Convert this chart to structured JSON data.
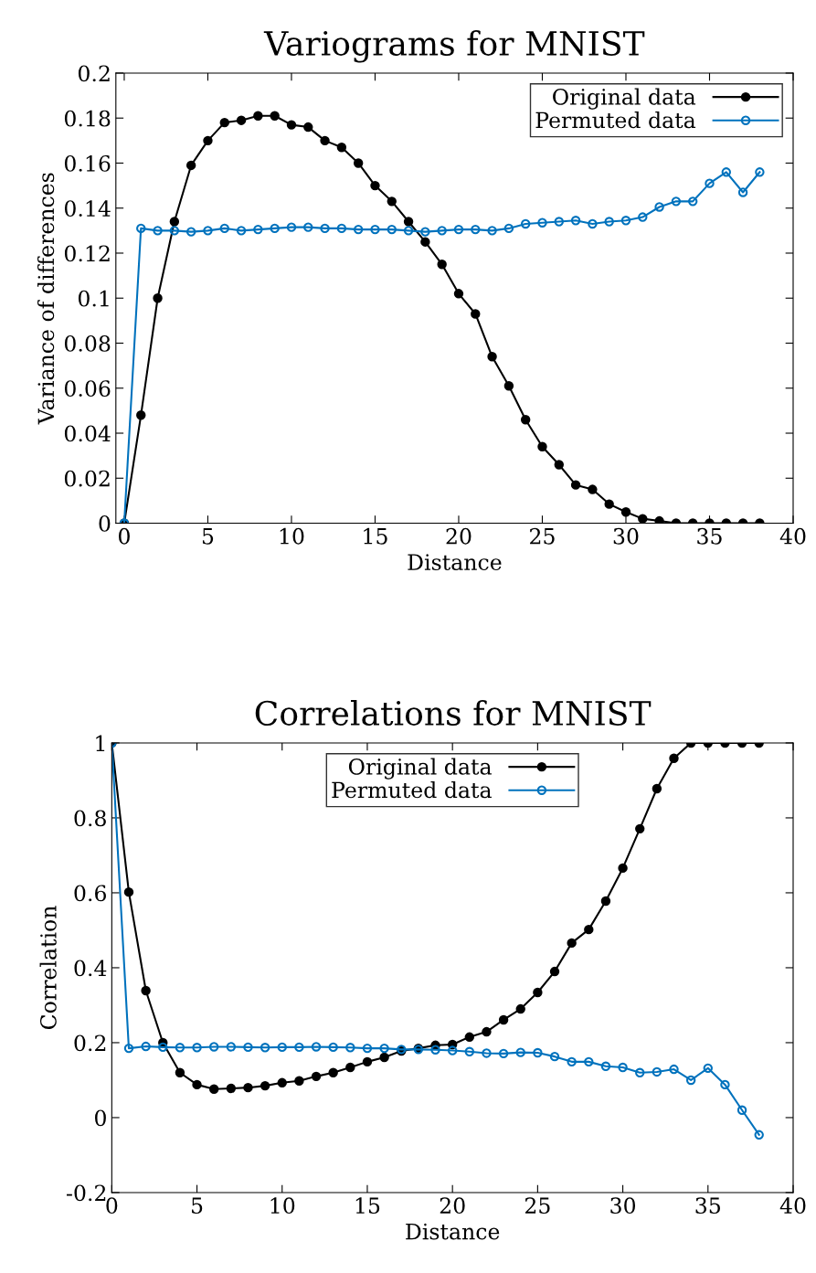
{
  "chart_data": [
    {
      "type": "line",
      "title": "Variograms for MNIST",
      "xlabel": "Distance",
      "ylabel": "Variance of differences",
      "line_style": "solid",
      "legend": "top right",
      "grid": false,
      "x": [
        0,
        1,
        2,
        3,
        4,
        5,
        6,
        7,
        8,
        9,
        10,
        11,
        12,
        13,
        14,
        15,
        16,
        17,
        18,
        19,
        20,
        21,
        22,
        23,
        24,
        25,
        26,
        27,
        28,
        29,
        30,
        31,
        32,
        33,
        34,
        35,
        36,
        37,
        38
      ],
      "xlim": [
        -0.5,
        40
      ],
      "xticks": [
        0,
        5,
        10,
        15,
        20,
        25,
        30,
        35,
        40
      ],
      "ylim": [
        0,
        0.2
      ],
      "yticks": [
        0,
        0.02,
        0.04,
        0.06,
        0.08,
        0.1,
        0.12,
        0.14,
        0.16,
        0.18,
        0.2
      ],
      "series": [
        {
          "name": "Original data",
          "color": "#000000",
          "marker": "circle",
          "values": [
            0,
            0.048,
            0.1,
            0.134,
            0.159,
            0.17,
            0.178,
            0.179,
            0.181,
            0.181,
            0.177,
            0.176,
            0.17,
            0.167,
            0.16,
            0.15,
            0.143,
            0.134,
            0.125,
            0.115,
            0.102,
            0.093,
            0.074,
            0.061,
            0.046,
            0.034,
            0.026,
            0.017,
            0.015,
            0.0085,
            0.005,
            0.002,
            0.001,
            0,
            0,
            0,
            0,
            0,
            0
          ]
        },
        {
          "name": "Permuted data",
          "color": "#0072bd",
          "marker": "open circle",
          "values": [
            0,
            0.131,
            0.13,
            0.13,
            0.1295,
            0.13,
            0.131,
            0.13,
            0.1305,
            0.131,
            0.1315,
            0.1315,
            0.131,
            0.131,
            0.1305,
            0.1305,
            0.1305,
            0.13,
            0.1295,
            0.13,
            0.1305,
            0.1305,
            0.13,
            0.131,
            0.133,
            0.1335,
            0.134,
            0.1345,
            0.133,
            0.134,
            0.1345,
            0.136,
            0.1405,
            0.143,
            0.143,
            0.151,
            0.156,
            0.147,
            0.156
          ]
        }
      ]
    },
    {
      "type": "line",
      "title": "Correlations for MNIST",
      "xlabel": "Distance",
      "ylabel": "Correlation",
      "line_style": "solid",
      "legend": "top",
      "grid": false,
      "x": [
        0,
        1,
        2,
        3,
        4,
        5,
        6,
        7,
        8,
        9,
        10,
        11,
        12,
        13,
        14,
        15,
        16,
        17,
        18,
        19,
        20,
        21,
        22,
        23,
        24,
        25,
        26,
        27,
        28,
        29,
        30,
        31,
        32,
        33,
        34,
        35,
        36,
        37,
        38
      ],
      "xlim": [
        0,
        40
      ],
      "xticks": [
        0,
        5,
        10,
        15,
        20,
        25,
        30,
        35,
        40
      ],
      "ylim": [
        -0.2,
        1
      ],
      "yticks": [
        {
          "value": -0.2,
          "label": "-0.2"
        },
        0,
        0.2,
        0.4,
        0.6,
        0.8,
        1
      ],
      "series": [
        {
          "name": "Original data",
          "color": "#000000",
          "marker": "circle",
          "values": [
            1,
            0.602,
            0.339,
            0.2,
            0.12,
            0.088,
            0.076,
            0.078,
            0.08,
            0.085,
            0.093,
            0.098,
            0.11,
            0.12,
            0.134,
            0.149,
            0.161,
            0.178,
            0.185,
            0.193,
            0.195,
            0.215,
            0.229,
            0.261,
            0.29,
            0.334,
            0.39,
            0.466,
            0.502,
            0.578,
            0.666,
            0.771,
            0.878,
            0.959,
            1,
            1,
            1,
            1,
            1
          ]
        },
        {
          "name": "Permuted data",
          "color": "#0072bd",
          "marker": "open circle",
          "values": [
            1,
            0.185,
            0.19,
            0.188,
            0.187,
            0.187,
            0.189,
            0.189,
            0.188,
            0.187,
            0.188,
            0.188,
            0.189,
            0.188,
            0.187,
            0.185,
            0.185,
            0.182,
            0.182,
            0.181,
            0.179,
            0.176,
            0.172,
            0.171,
            0.174,
            0.173,
            0.163,
            0.149,
            0.149,
            0.137,
            0.134,
            0.12,
            0.122,
            0.129,
            0.1,
            0.132,
            0.088,
            0.02,
            -0.046
          ]
        }
      ]
    }
  ]
}
